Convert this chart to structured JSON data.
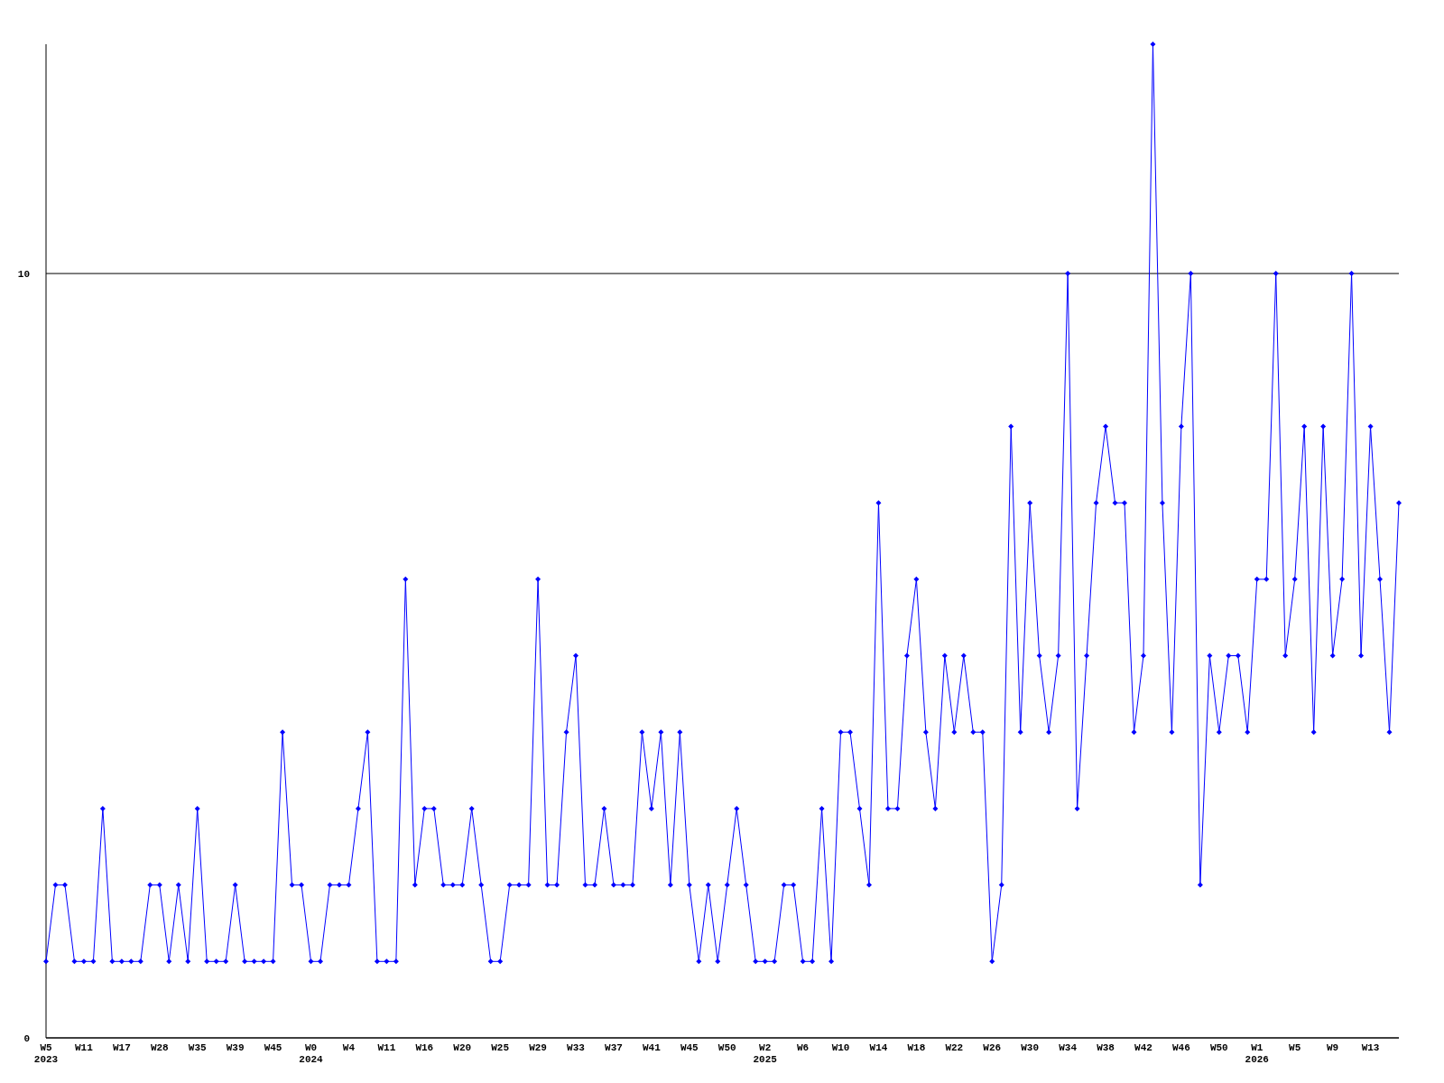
{
  "chart_data": {
    "type": "line",
    "categories": [
      "W5\n2023",
      null,
      null,
      null,
      "W11",
      null,
      null,
      null,
      "W17",
      null,
      null,
      null,
      "W28",
      null,
      null,
      null,
      "W35",
      null,
      null,
      null,
      "W39",
      null,
      null,
      null,
      "W45",
      null,
      null,
      null,
      "W0\n2024",
      null,
      null,
      null,
      "W4",
      null,
      null,
      null,
      "W11",
      null,
      null,
      null,
      "W16",
      null,
      null,
      null,
      "W20",
      null,
      null,
      null,
      "W25",
      null,
      null,
      null,
      "W29",
      null,
      null,
      null,
      "W33",
      null,
      null,
      null,
      "W37",
      null,
      null,
      null,
      "W41",
      null,
      null,
      null,
      "W45",
      null,
      null,
      null,
      "W50",
      null,
      null,
      null,
      "W2\n2025",
      null,
      null,
      null,
      "W6",
      null,
      null,
      null,
      "W10",
      null,
      null,
      null,
      "W14",
      null,
      null,
      null,
      "W18",
      null,
      null,
      null,
      "W22",
      null,
      null,
      null,
      "W26",
      null,
      null,
      null,
      "W30",
      null,
      null,
      null,
      "W34",
      null,
      null,
      null,
      "W38",
      null,
      null,
      null,
      "W42",
      null,
      null,
      null,
      "W46",
      null,
      null,
      null,
      "W50",
      null,
      null,
      null,
      "W1\n2026",
      null,
      null,
      null,
      "W5",
      null,
      null,
      null,
      "W9",
      null,
      null,
      null,
      "W13",
      null,
      null,
      null
    ],
    "series": [
      {
        "color": "#0000ff",
        "values": [
          1,
          2,
          2,
          1,
          1,
          1,
          3,
          1,
          1,
          1,
          1,
          2,
          2,
          1,
          2,
          1,
          3,
          1,
          1,
          1,
          2,
          1,
          1,
          1,
          1,
          4,
          2,
          2,
          1,
          1,
          2,
          2,
          2,
          3,
          4,
          1,
          1,
          1,
          6,
          2,
          3,
          3,
          2,
          2,
          2,
          3,
          2,
          1,
          1,
          2,
          2,
          2,
          6,
          2,
          2,
          4,
          5,
          2,
          2,
          3,
          2,
          2,
          2,
          4,
          3,
          4,
          2,
          4,
          2,
          1,
          2,
          1,
          2,
          3,
          2,
          1,
          1,
          1,
          2,
          2,
          1,
          1,
          3,
          1,
          4,
          4,
          3,
          2,
          7,
          3,
          3,
          5,
          6,
          4,
          3,
          5,
          4,
          5,
          4,
          4,
          1,
          2,
          8,
          4,
          7,
          5,
          4,
          5,
          10,
          3,
          5,
          7,
          8,
          7,
          7,
          4,
          5,
          13,
          7,
          4,
          8,
          10,
          2,
          5,
          4,
          5,
          5,
          4,
          6,
          6,
          10,
          5,
          6,
          8,
          4,
          8,
          5,
          6,
          10,
          5,
          8,
          6,
          4,
          7
        ]
      }
    ],
    "ylim": [
      0,
      13
    ],
    "yticks": [
      0,
      10
    ],
    "grid": "y",
    "marker": "diamond",
    "line_style": "solid"
  }
}
